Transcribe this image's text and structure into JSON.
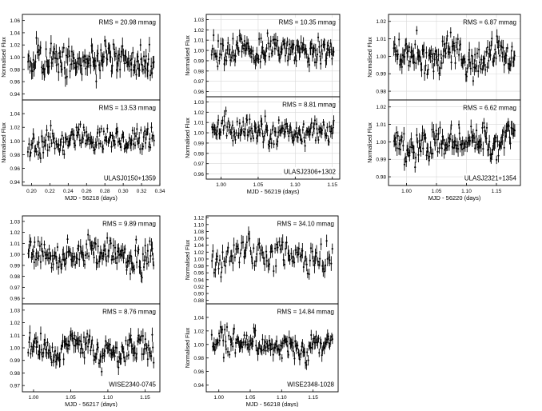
{
  "figure": {
    "ylabel": "Normalised Flux"
  },
  "chart_data": [
    {
      "type": "scatter",
      "pair": "a",
      "title": "RMS = 20.98 mmag",
      "target": "",
      "xlabel": "",
      "ylabel": "Normalised Flux",
      "xlim": [
        0.19,
        0.34
      ],
      "ylim": [
        0.93,
        1.07
      ],
      "yticks": [
        "0.94",
        "0.96",
        "0.98",
        "1.00",
        "1.02",
        "1.04",
        "1.06"
      ],
      "ytick_values": [
        0.94,
        0.96,
        0.98,
        1.0,
        1.02,
        1.04,
        1.06
      ],
      "xticks": [],
      "xtick_values": [],
      "grid": false,
      "n_points": 150,
      "mean": 1.0,
      "rms": 0.02098,
      "seed": 11
    },
    {
      "type": "scatter",
      "pair": "a",
      "title": "RMS = 13.53 mmag",
      "target": "ULASJ0150+1359",
      "xlabel": "MJD - 56218 (days)",
      "ylabel": "Normalised Flux",
      "xlim": [
        0.19,
        0.34
      ],
      "ylim": [
        0.935,
        1.06
      ],
      "yticks": [
        "0.94",
        "0.96",
        "0.98",
        "1.00",
        "1.02",
        "1.04"
      ],
      "ytick_values": [
        0.94,
        0.96,
        0.98,
        1.0,
        1.02,
        1.04
      ],
      "xticks": [
        "0.20",
        "0.22",
        "0.24",
        "0.26",
        "0.28",
        "0.30",
        "0.32",
        "0.34"
      ],
      "xtick_values": [
        0.2,
        0.22,
        0.24,
        0.26,
        0.28,
        0.3,
        0.32,
        0.34
      ],
      "grid": false,
      "n_points": 150,
      "mean": 1.0,
      "rms": 0.01353,
      "seed": 12
    },
    {
      "type": "scatter",
      "pair": "b",
      "title": "RMS = 10.35 mmag",
      "target": "",
      "xlabel": "",
      "ylabel": "Normalised Flux",
      "xlim": [
        0.98,
        1.16
      ],
      "ylim": [
        0.955,
        1.035
      ],
      "yticks": [
        "0.96",
        "0.97",
        "0.98",
        "0.99",
        "1.00",
        "1.01",
        "1.02",
        "1.03"
      ],
      "ytick_values": [
        0.96,
        0.97,
        0.98,
        0.99,
        1.0,
        1.01,
        1.02,
        1.03
      ],
      "xticks": [],
      "xtick_values": [],
      "grid": true,
      "n_points": 150,
      "mean": 1.0,
      "rms": 0.01035,
      "seed": 21
    },
    {
      "type": "scatter",
      "pair": "b",
      "title": "RMS = 8.81 mmag",
      "target": "ULASJ2306+1302",
      "xlabel": "MJD - 56219 (days)",
      "ylabel": "Normalised Flux",
      "xlim": [
        0.98,
        1.16
      ],
      "ylim": [
        0.955,
        1.035
      ],
      "yticks": [
        "0.96",
        "0.97",
        "0.98",
        "0.99",
        "1.00",
        "1.01",
        "1.02",
        "1.03"
      ],
      "ytick_values": [
        0.96,
        0.97,
        0.98,
        0.99,
        1.0,
        1.01,
        1.02,
        1.03
      ],
      "xticks": [
        "1.00",
        "1.05",
        "1.10",
        "1.15"
      ],
      "xtick_values": [
        1.0,
        1.05,
        1.1,
        1.15
      ],
      "grid": true,
      "n_points": 150,
      "mean": 1.0,
      "rms": 0.00881,
      "seed": 22
    },
    {
      "type": "scatter",
      "pair": "c",
      "title": "RMS = 6.87 mmag",
      "target": "",
      "xlabel": "",
      "ylabel": "Normalised Flux",
      "xlim": [
        0.97,
        1.19
      ],
      "ylim": [
        0.975,
        1.024
      ],
      "yticks": [
        "0.98",
        "0.99",
        "1.00",
        "1.01",
        "1.02"
      ],
      "ytick_values": [
        0.98,
        0.99,
        1.0,
        1.01,
        1.02
      ],
      "xticks": [],
      "xtick_values": [],
      "grid": true,
      "n_points": 150,
      "mean": 1.0,
      "rms": 0.00687,
      "seed": 31
    },
    {
      "type": "scatter",
      "pair": "c",
      "title": "RMS = 6.62 mmag",
      "target": "ULASJ2321+1354",
      "xlabel": "MJD - 56220 (days)",
      "ylabel": "Normalised Flux",
      "xlim": [
        0.97,
        1.19
      ],
      "ylim": [
        0.975,
        1.024
      ],
      "yticks": [
        "0.98",
        "0.99",
        "1.00",
        "1.01",
        "1.02"
      ],
      "ytick_values": [
        0.98,
        0.99,
        1.0,
        1.01,
        1.02
      ],
      "xticks": [
        "1.00",
        "1.05",
        "1.10",
        "1.15"
      ],
      "xtick_values": [
        1.0,
        1.05,
        1.1,
        1.15
      ],
      "grid": true,
      "n_points": 150,
      "mean": 1.0,
      "rms": 0.00662,
      "seed": 32
    },
    {
      "type": "scatter",
      "pair": "d",
      "title": "RMS = 9.89 mmag",
      "target": "",
      "xlabel": "",
      "ylabel": "",
      "xlim": [
        0.985,
        1.17
      ],
      "ylim": [
        0.955,
        1.035
      ],
      "yticks": [
        "0.96",
        "0.97",
        "0.98",
        "0.99",
        "1.00",
        "1.01",
        "1.02",
        "1.03"
      ],
      "ytick_values": [
        0.96,
        0.97,
        0.98,
        0.99,
        1.0,
        1.01,
        1.02,
        1.03
      ],
      "xticks": [],
      "xtick_values": [],
      "grid": false,
      "n_points": 150,
      "mean": 1.0,
      "rms": 0.00989,
      "seed": 41
    },
    {
      "type": "scatter",
      "pair": "d",
      "title": "RMS = 8.76 mmag",
      "target": "WISE2340-0745",
      "xlabel": "MJD - 56217 (days)",
      "ylabel": "",
      "xlim": [
        0.985,
        1.17
      ],
      "ylim": [
        0.965,
        1.035
      ],
      "yticks": [
        "0.97",
        "0.98",
        "0.99",
        "1.00",
        "1.01",
        "1.02",
        "1.03"
      ],
      "ytick_values": [
        0.97,
        0.98,
        0.99,
        1.0,
        1.01,
        1.02,
        1.03
      ],
      "xticks": [
        "1.00",
        "1.05",
        "1.10",
        "1.15"
      ],
      "xtick_values": [
        1.0,
        1.05,
        1.1,
        1.15
      ],
      "grid": false,
      "n_points": 150,
      "mean": 1.0,
      "rms": 0.00876,
      "seed": 42
    },
    {
      "type": "scatter",
      "pair": "e",
      "title": "RMS = 34.10 mmag",
      "target": "",
      "xlabel": "",
      "ylabel": "Normalised Flux",
      "xlim": [
        0.98,
        1.19
      ],
      "ylim": [
        0.87,
        1.125
      ],
      "yticks": [
        "0.88",
        "0.90",
        "0.92",
        "0.94",
        "0.96",
        "0.98",
        "1.00",
        "1.02",
        "1.04",
        "1.06",
        "1.08",
        "1.10",
        "1.12"
      ],
      "ytick_values": [
        0.88,
        0.9,
        0.92,
        0.94,
        0.96,
        0.98,
        1.0,
        1.02,
        1.04,
        1.06,
        1.08,
        1.1,
        1.12
      ],
      "xticks": [],
      "xtick_values": [],
      "grid": false,
      "n_points": 110,
      "mean": 1.0,
      "rms": 0.0341,
      "seed": 51
    },
    {
      "type": "scatter",
      "pair": "e",
      "title": "RMS = 14.84 mmag",
      "target": "WISE2348-1028",
      "xlabel": "MJD - 56218 (days)",
      "ylabel": "Normalised Flux",
      "xlim": [
        0.98,
        1.19
      ],
      "ylim": [
        0.93,
        1.06
      ],
      "yticks": [
        "0.94",
        "0.96",
        "0.98",
        "1.00",
        "1.02",
        "1.04"
      ],
      "ytick_values": [
        0.94,
        0.96,
        0.98,
        1.0,
        1.02,
        1.04
      ],
      "xticks": [
        "1.00",
        "1.05",
        "1.10",
        "1.15"
      ],
      "xtick_values": [
        1.0,
        1.05,
        1.1,
        1.15
      ],
      "grid": false,
      "n_points": 150,
      "mean": 1.0,
      "rms": 0.01484,
      "seed": 52
    }
  ]
}
